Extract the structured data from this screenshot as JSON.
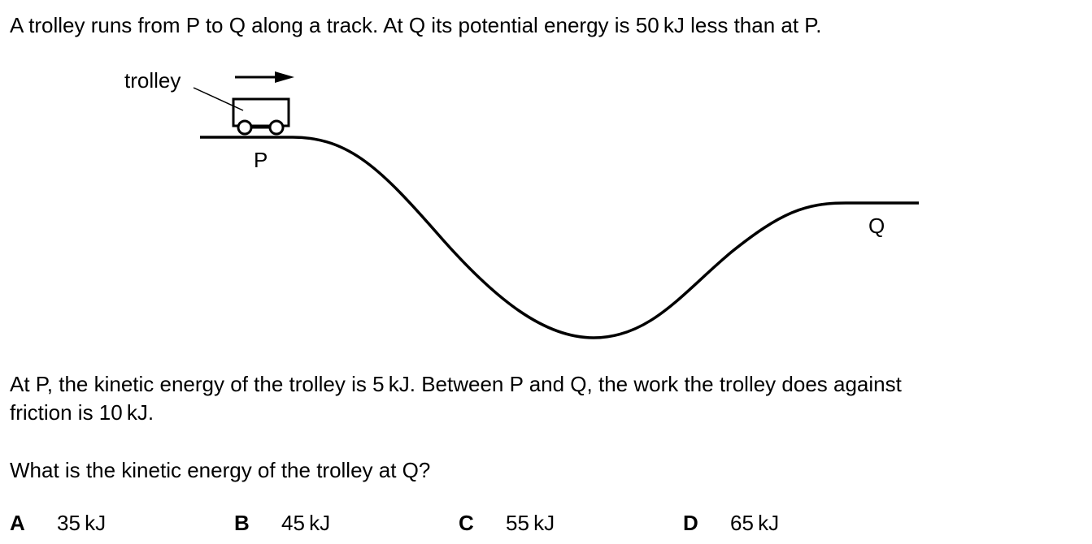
{
  "question": {
    "intro": "A trolley runs from P to Q along a track. At Q its potential energy is 50 kJ less than at P.",
    "paragraph_line_1": "At P, the kinetic energy of the trolley is 5 kJ. Between P and Q, the work the trolley does against",
    "paragraph_line_2": "friction is 10 kJ.",
    "prompt": "What is the kinetic energy of the trolley at Q?"
  },
  "diagram": {
    "trolley_label": "trolley",
    "point_p_label": "P",
    "point_q_label": "Q"
  },
  "options": [
    {
      "letter": "A",
      "text": "35 kJ"
    },
    {
      "letter": "B",
      "text": "45 kJ"
    },
    {
      "letter": "C",
      "text": "55 kJ"
    },
    {
      "letter": "D",
      "text": "65 kJ"
    }
  ]
}
